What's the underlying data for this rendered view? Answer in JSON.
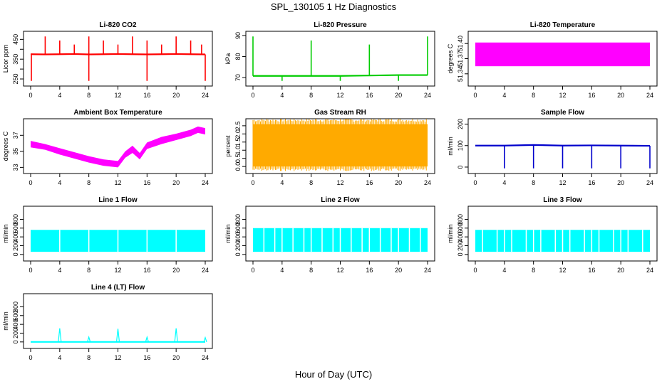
{
  "title": "SPL_130105  1 Hz Diagnostics",
  "xlabel": "Hour of Day (UTC)",
  "chart_data": [
    {
      "type": "line",
      "title": "Li-820 CO2",
      "ylabel": "Licor ppm",
      "color": "#ff0000",
      "xlim": [
        0,
        24
      ],
      "xticks": [
        0,
        4,
        8,
        12,
        16,
        20,
        24
      ],
      "ylim": [
        225,
        480
      ],
      "yticks": [
        250,
        300,
        350,
        400,
        450
      ],
      "yticklabels": [
        "250",
        "",
        "350",
        "",
        "450"
      ],
      "series": [
        {
          "x": [
            0,
            2,
            4,
            6,
            8,
            10,
            12,
            14,
            16,
            18,
            20,
            22,
            24
          ],
          "values": [
            375,
            374,
            375,
            376,
            374,
            375,
            376,
            375,
            374,
            375,
            376,
            375,
            374
          ]
        }
      ],
      "spikes_up": [
        2,
        4,
        6,
        8,
        10,
        12,
        14,
        16,
        18,
        20,
        22,
        23.5
      ],
      "spikes_down": [
        0.1,
        8,
        16,
        24
      ]
    },
    {
      "type": "line",
      "title": "Li-820 Pressure",
      "ylabel": "kPa",
      "color": "#00cc00",
      "xlim": [
        0,
        24
      ],
      "xticks": [
        0,
        4,
        8,
        12,
        16,
        20,
        24
      ],
      "ylim": [
        67,
        91
      ],
      "yticks": [
        70,
        80,
        90
      ],
      "yticklabels": [
        "70",
        "80",
        "90"
      ],
      "series": [
        {
          "x": [
            0,
            4,
            8,
            12,
            16,
            20,
            24
          ],
          "values": [
            70.8,
            70.8,
            70.8,
            70.8,
            71.0,
            71.2,
            71.2
          ]
        }
      ],
      "spikes_up": [
        0,
        8,
        16,
        24
      ],
      "spikes_down": [
        4,
        12,
        20
      ]
    },
    {
      "type": "area",
      "title": "Li-820 Temperature",
      "ylabel": "degrees C",
      "color": "#ff00ff",
      "xlim": [
        0,
        24
      ],
      "xticks": [
        0,
        4,
        8,
        12,
        16,
        20,
        24
      ],
      "ylim": [
        51.32,
        51.42
      ],
      "yticks": [
        51.34,
        51.37,
        51.4
      ],
      "yticklabels": [
        "51.34",
        "51.37",
        "51.40"
      ],
      "band": {
        "low": 51.355,
        "high": 51.402
      },
      "x": [
        0,
        24
      ]
    },
    {
      "type": "area",
      "title": "Ambient Box Temperature",
      "ylabel": "degrees C",
      "color": "#ff00ff",
      "xlim": [
        0,
        24
      ],
      "xticks": [
        0,
        4,
        8,
        12,
        16,
        20,
        24
      ],
      "ylim": [
        32.5,
        38.8
      ],
      "yticks": [
        33,
        35,
        37
      ],
      "yticklabels": [
        "33",
        "35",
        "37"
      ],
      "x": [
        0,
        2,
        4,
        6,
        8,
        10,
        12,
        13,
        14,
        15,
        16,
        18,
        20,
        22,
        23,
        24
      ],
      "low": [
        35.5,
        35.2,
        34.6,
        34.1,
        33.6,
        33.2,
        33.0,
        34.2,
        34.8,
        34.0,
        35.3,
        35.9,
        36.4,
        36.9,
        37.3,
        37.1
      ],
      "high": [
        36.3,
        35.9,
        35.4,
        34.9,
        34.4,
        34.0,
        33.8,
        35.0,
        35.7,
        34.8,
        36.1,
        36.8,
        37.2,
        37.7,
        38.1,
        37.9
      ]
    },
    {
      "type": "area",
      "title": "Gas Stream RH",
      "ylabel": "percent",
      "color": "#ffaa00",
      "xlim": [
        0,
        24
      ],
      "xticks": [
        0,
        4,
        8,
        12,
        16,
        20,
        24
      ],
      "ylim": [
        -0.3,
        2.8
      ],
      "yticks": [
        0,
        0.5,
        1.0,
        1.5,
        2.0,
        2.5
      ],
      "yticklabels": [
        "0.0",
        "0.5",
        "1.0",
        "1.5",
        "2.0",
        "2.5"
      ],
      "band": {
        "low": 0.0,
        "high": 2.6
      },
      "x": [
        0,
        24
      ]
    },
    {
      "type": "line",
      "title": "Sample Flow",
      "ylabel": "ml/min",
      "color": "#0000cc",
      "xlim": [
        0,
        24
      ],
      "xticks": [
        0,
        4,
        8,
        12,
        16,
        20,
        24
      ],
      "ylim": [
        -20,
        215
      ],
      "yticks": [
        0,
        100,
        200
      ],
      "yticklabels": [
        "0",
        "100",
        "200"
      ],
      "series": [
        {
          "x": [
            0,
            4,
            8,
            12,
            16,
            20,
            24
          ],
          "values": [
            100,
            100,
            103,
            100,
            101,
            100,
            99
          ]
        }
      ],
      "spikes_down": [
        4,
        8,
        12,
        16,
        20,
        24
      ]
    },
    {
      "type": "area",
      "title": "Line 1 Flow",
      "ylabel": "ml/min",
      "color": "#00ffff",
      "xlim": [
        0,
        24
      ],
      "xticks": [
        0,
        4,
        8,
        12,
        16,
        20,
        24
      ],
      "ylim": [
        -100,
        1050
      ],
      "yticks": [
        0,
        200,
        400,
        600,
        800
      ],
      "yticklabels": [
        "0",
        "200",
        "400",
        "600",
        "800"
      ],
      "band": {
        "low": 60,
        "high": 560
      },
      "x": [
        0,
        24
      ],
      "gaps": [
        4,
        8,
        12,
        16,
        20
      ]
    },
    {
      "type": "area",
      "title": "Line 2 Flow",
      "ylabel": "ml/min",
      "color": "#00ffff",
      "xlim": [
        0,
        24
      ],
      "xticks": [
        0,
        4,
        8,
        12,
        16,
        20,
        24
      ],
      "ylim": [
        -100,
        1050
      ],
      "yticks": [
        0,
        200,
        400,
        600,
        800
      ],
      "yticklabels": [
        "0",
        "200",
        "400",
        "600",
        "800"
      ],
      "band": {
        "low": 60,
        "high": 600
      },
      "x": [
        0,
        24
      ],
      "gaps": [
        1.5,
        3,
        4,
        5.5,
        7,
        8,
        9.5,
        11,
        12,
        13.5,
        15,
        16,
        17.5,
        19,
        20,
        21.5,
        23
      ]
    },
    {
      "type": "area",
      "title": "Line 3 Flow",
      "ylabel": "ml/min",
      "color": "#00ffff",
      "xlim": [
        0,
        24
      ],
      "xticks": [
        0,
        4,
        8,
        12,
        16,
        20,
        24
      ],
      "ylim": [
        -100,
        1050
      ],
      "yticks": [
        0,
        200,
        400,
        600,
        800
      ],
      "yticklabels": [
        "0",
        "200",
        "400",
        "600",
        "800"
      ],
      "band": {
        "low": 60,
        "high": 560
      },
      "x": [
        0,
        24
      ],
      "gaps": [
        1,
        3,
        4,
        5,
        7,
        8,
        9,
        11,
        12,
        13,
        15,
        16,
        17,
        19,
        20,
        21,
        23
      ]
    },
    {
      "type": "line",
      "title": "Line 4 (LT) Flow",
      "ylabel": "ml/min",
      "color": "#00ffff",
      "xlim": [
        0,
        24
      ],
      "xticks": [
        0,
        4,
        8,
        12,
        16,
        20,
        24
      ],
      "ylim": [
        -100,
        1050
      ],
      "yticks": [
        0,
        200,
        400,
        600,
        800
      ],
      "yticklabels": [
        "0",
        "200",
        "400",
        "600",
        "800"
      ],
      "series": [
        {
          "x": [
            0,
            24
          ],
          "values": [
            0,
            0
          ]
        }
      ],
      "peaks": [
        {
          "x": 4,
          "y": 310
        },
        {
          "x": 8,
          "y": 110
        },
        {
          "x": 12,
          "y": 300
        },
        {
          "x": 16,
          "y": 110
        },
        {
          "x": 20,
          "y": 310
        },
        {
          "x": 24,
          "y": 100
        }
      ]
    }
  ]
}
